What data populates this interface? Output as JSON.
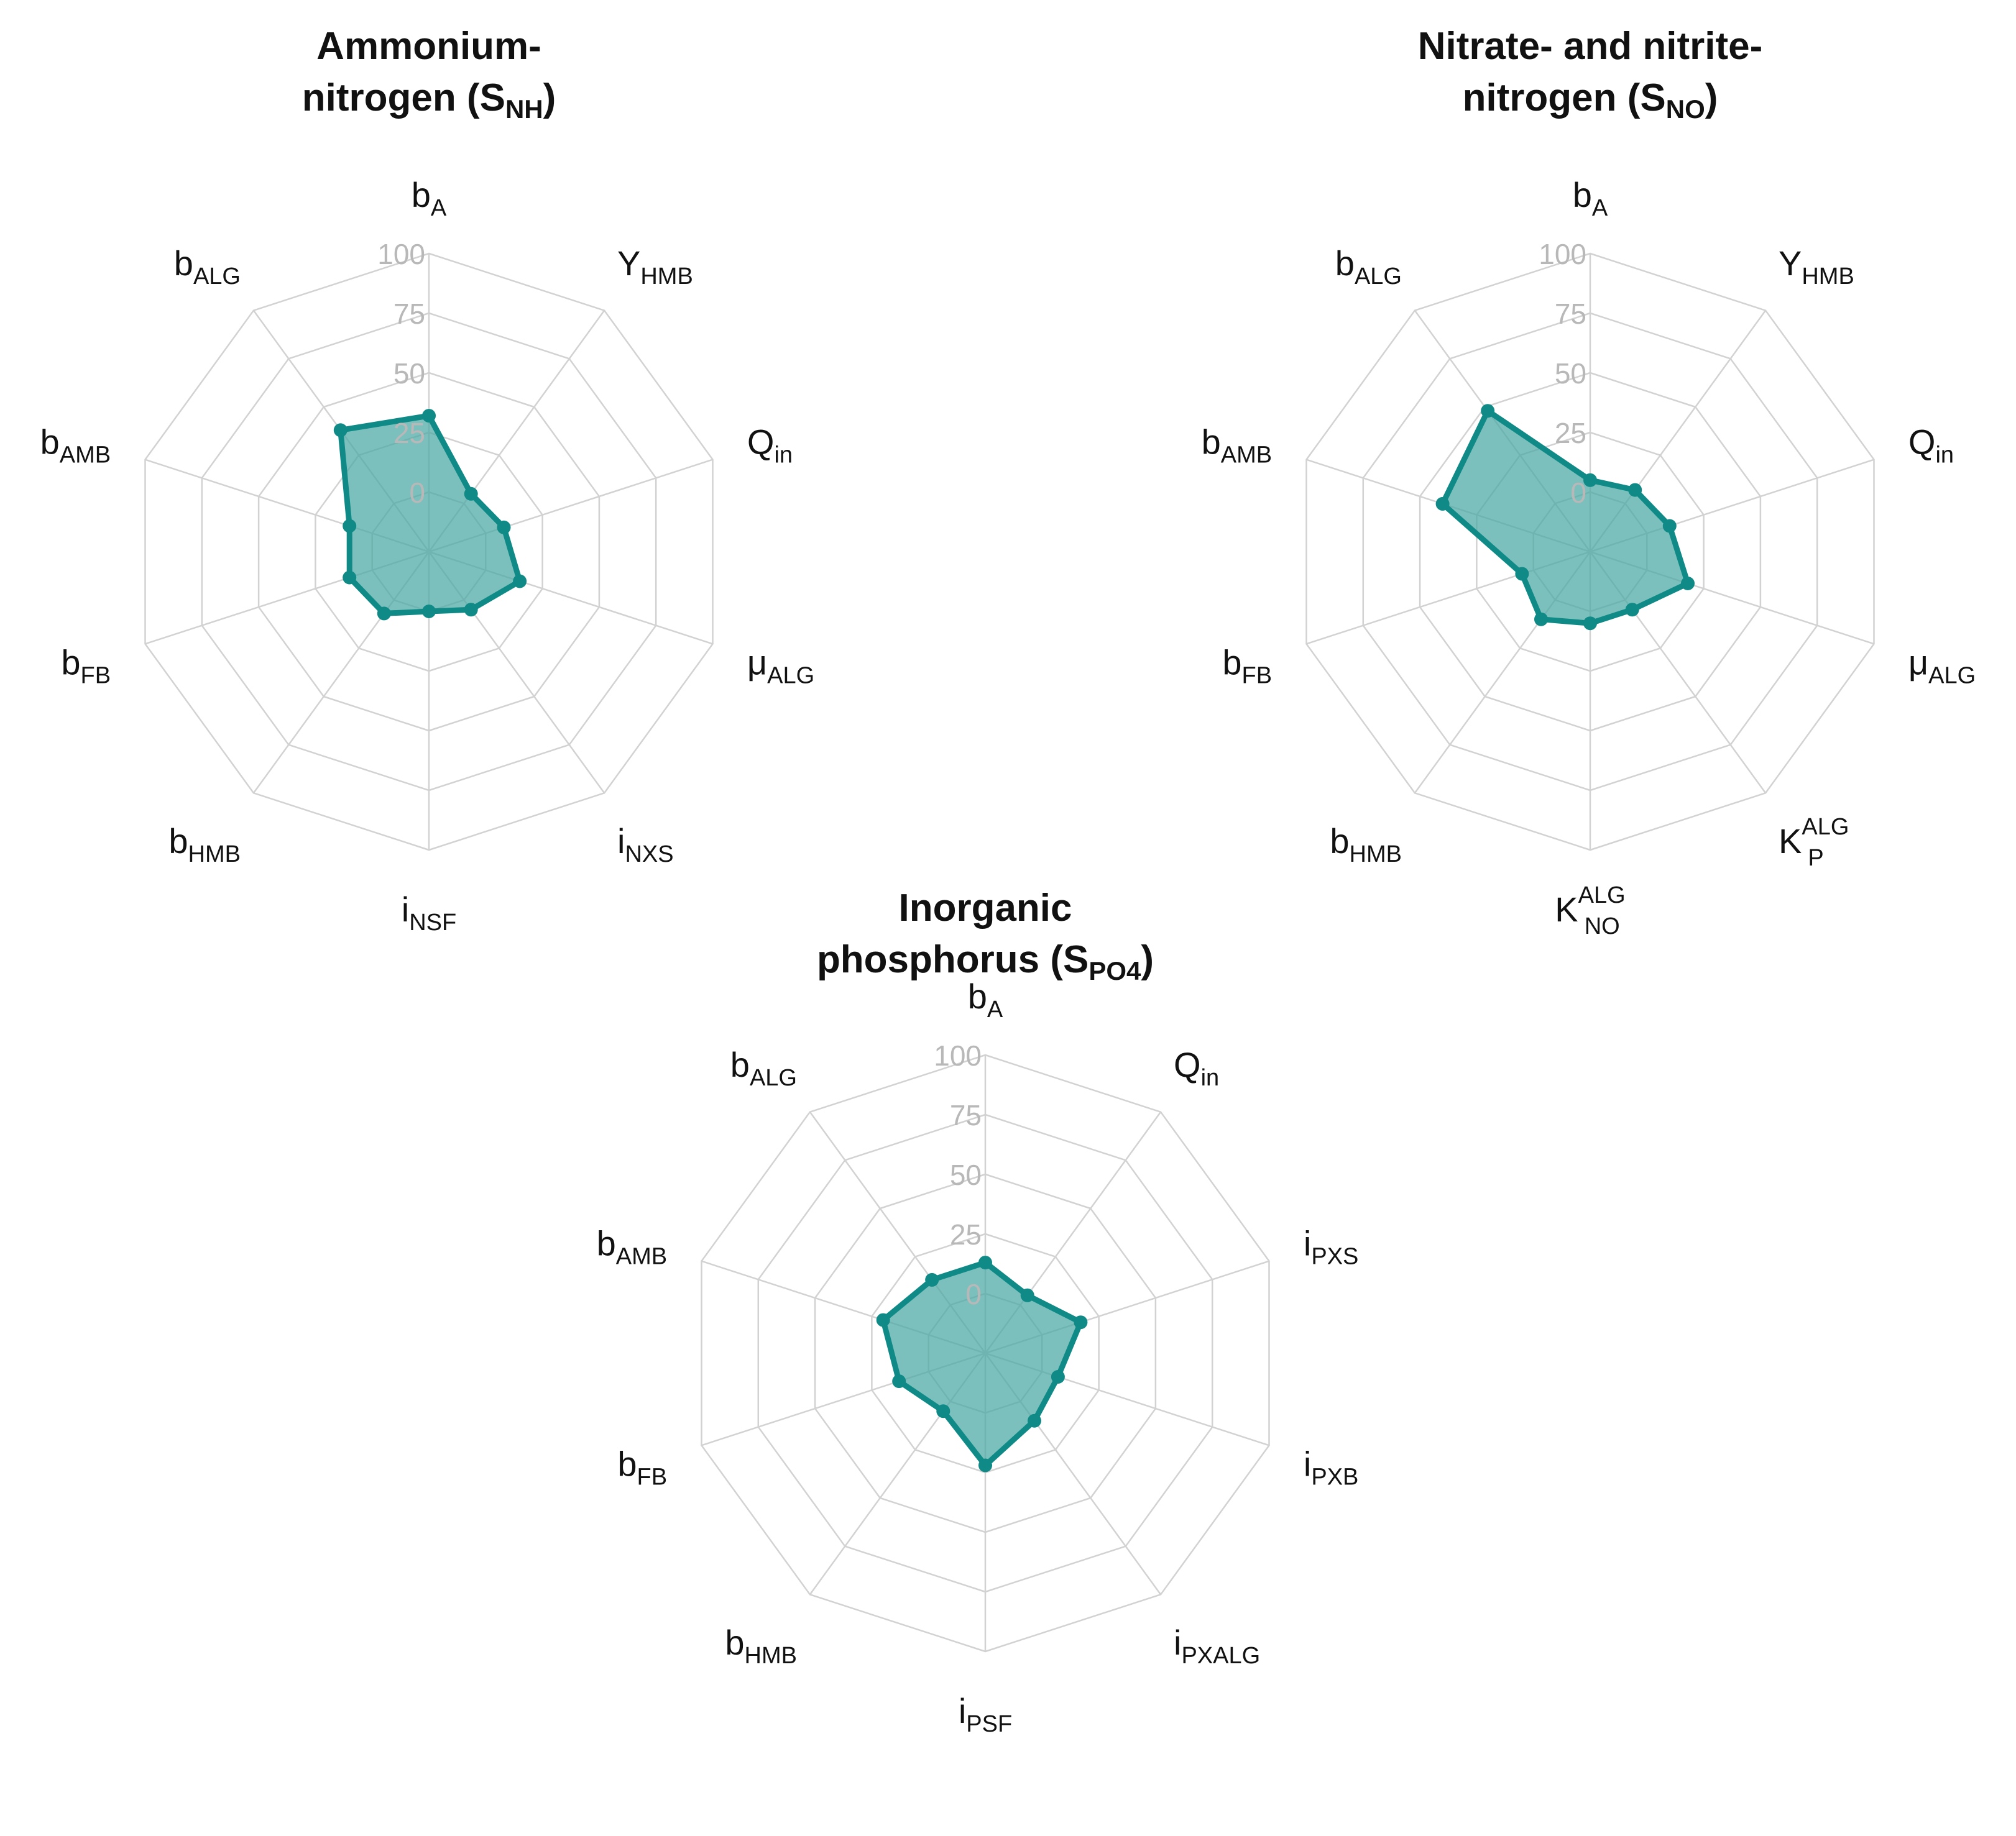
{
  "chart_data": [
    {
      "type": "radar",
      "title_lines": [
        "Ammonium-",
        "nitrogen (S",
        "NH",
        ")"
      ],
      "title": "Ammonium-nitrogen (SNH)",
      "r_ticks": [
        "0",
        "25",
        "50",
        "75",
        "100"
      ],
      "rlim": [
        0,
        100
      ],
      "grid": true,
      "color": "#0f8a86",
      "fill_color": "#4aa8a4",
      "axes": [
        {
          "main": "b",
          "sub": "A",
          "sup": ""
        },
        {
          "main": "Y",
          "sub": "HMB",
          "sup": ""
        },
        {
          "main": "Q",
          "sub": "in",
          "sup": ""
        },
        {
          "main": "μ",
          "sub": "ALG",
          "sup": ""
        },
        {
          "main": "i",
          "sub": "NXS",
          "sup": ""
        },
        {
          "main": "i",
          "sub": "NSF",
          "sup": ""
        },
        {
          "main": "b",
          "sub": "HMB",
          "sup": ""
        },
        {
          "main": "b",
          "sub": "FB",
          "sup": ""
        },
        {
          "main": "b",
          "sub": "AMB",
          "sup": ""
        },
        {
          "main": "b",
          "sub": "ALG",
          "sup": ""
        }
      ],
      "values": [
        32,
        5,
        8,
        15,
        5,
        0,
        7,
        10,
        10,
        38
      ]
    },
    {
      "type": "radar",
      "title_lines": [
        "Nitrate- and nitrite-",
        "nitrogen (S",
        "NO",
        ")"
      ],
      "title": "Nitrate- and nitrite-nitrogen (SNO)",
      "r_ticks": [
        "0",
        "25",
        "50",
        "75",
        "100"
      ],
      "rlim": [
        0,
        100
      ],
      "grid": true,
      "color": "#0f8a86",
      "fill_color": "#4aa8a4",
      "axes": [
        {
          "main": "b",
          "sub": "A",
          "sup": ""
        },
        {
          "main": "Y",
          "sub": "HMB",
          "sup": ""
        },
        {
          "main": "Q",
          "sub": "in",
          "sup": ""
        },
        {
          "main": "μ",
          "sub": "ALG",
          "sup": ""
        },
        {
          "main": "K",
          "sub": "P",
          "sup": "ALG"
        },
        {
          "main": "K",
          "sub": "NO",
          "sup": "ALG"
        },
        {
          "main": "b",
          "sub": "HMB",
          "sup": ""
        },
        {
          "main": "b",
          "sub": "FB",
          "sup": ""
        },
        {
          "main": "b",
          "sub": "AMB",
          "sup": ""
        },
        {
          "main": "b",
          "sub": "ALG",
          "sup": ""
        }
      ],
      "values": [
        5,
        7,
        10,
        18,
        5,
        5,
        10,
        5,
        40,
        48
      ]
    },
    {
      "type": "radar",
      "title_lines": [
        "Inorganic",
        "phosphorus (S",
        "PO4",
        ")"
      ],
      "title": "Inorganic phosphorus (SPO4)",
      "r_ticks": [
        "0",
        "25",
        "50",
        "75",
        "100"
      ],
      "rlim": [
        0,
        100
      ],
      "grid": true,
      "color": "#0f8a86",
      "fill_color": "#4aa8a4",
      "axes": [
        {
          "main": "b",
          "sub": "A",
          "sup": ""
        },
        {
          "main": "Q",
          "sub": "in",
          "sup": ""
        },
        {
          "main": "i",
          "sub": "PXS",
          "sup": ""
        },
        {
          "main": "i",
          "sub": "PXB",
          "sup": ""
        },
        {
          "main": "i",
          "sub": "PXALG",
          "sup": ""
        },
        {
          "main": "i",
          "sub": "PSF",
          "sup": ""
        },
        {
          "main": "b",
          "sub": "HMB",
          "sup": ""
        },
        {
          "main": "b",
          "sub": "FB",
          "sup": ""
        },
        {
          "main": "b",
          "sub": "AMB",
          "sup": ""
        },
        {
          "main": "b",
          "sub": "ALG",
          "sup": ""
        }
      ],
      "values": [
        13,
        5,
        17,
        7,
        10,
        22,
        5,
        13,
        20,
        13
      ]
    }
  ]
}
